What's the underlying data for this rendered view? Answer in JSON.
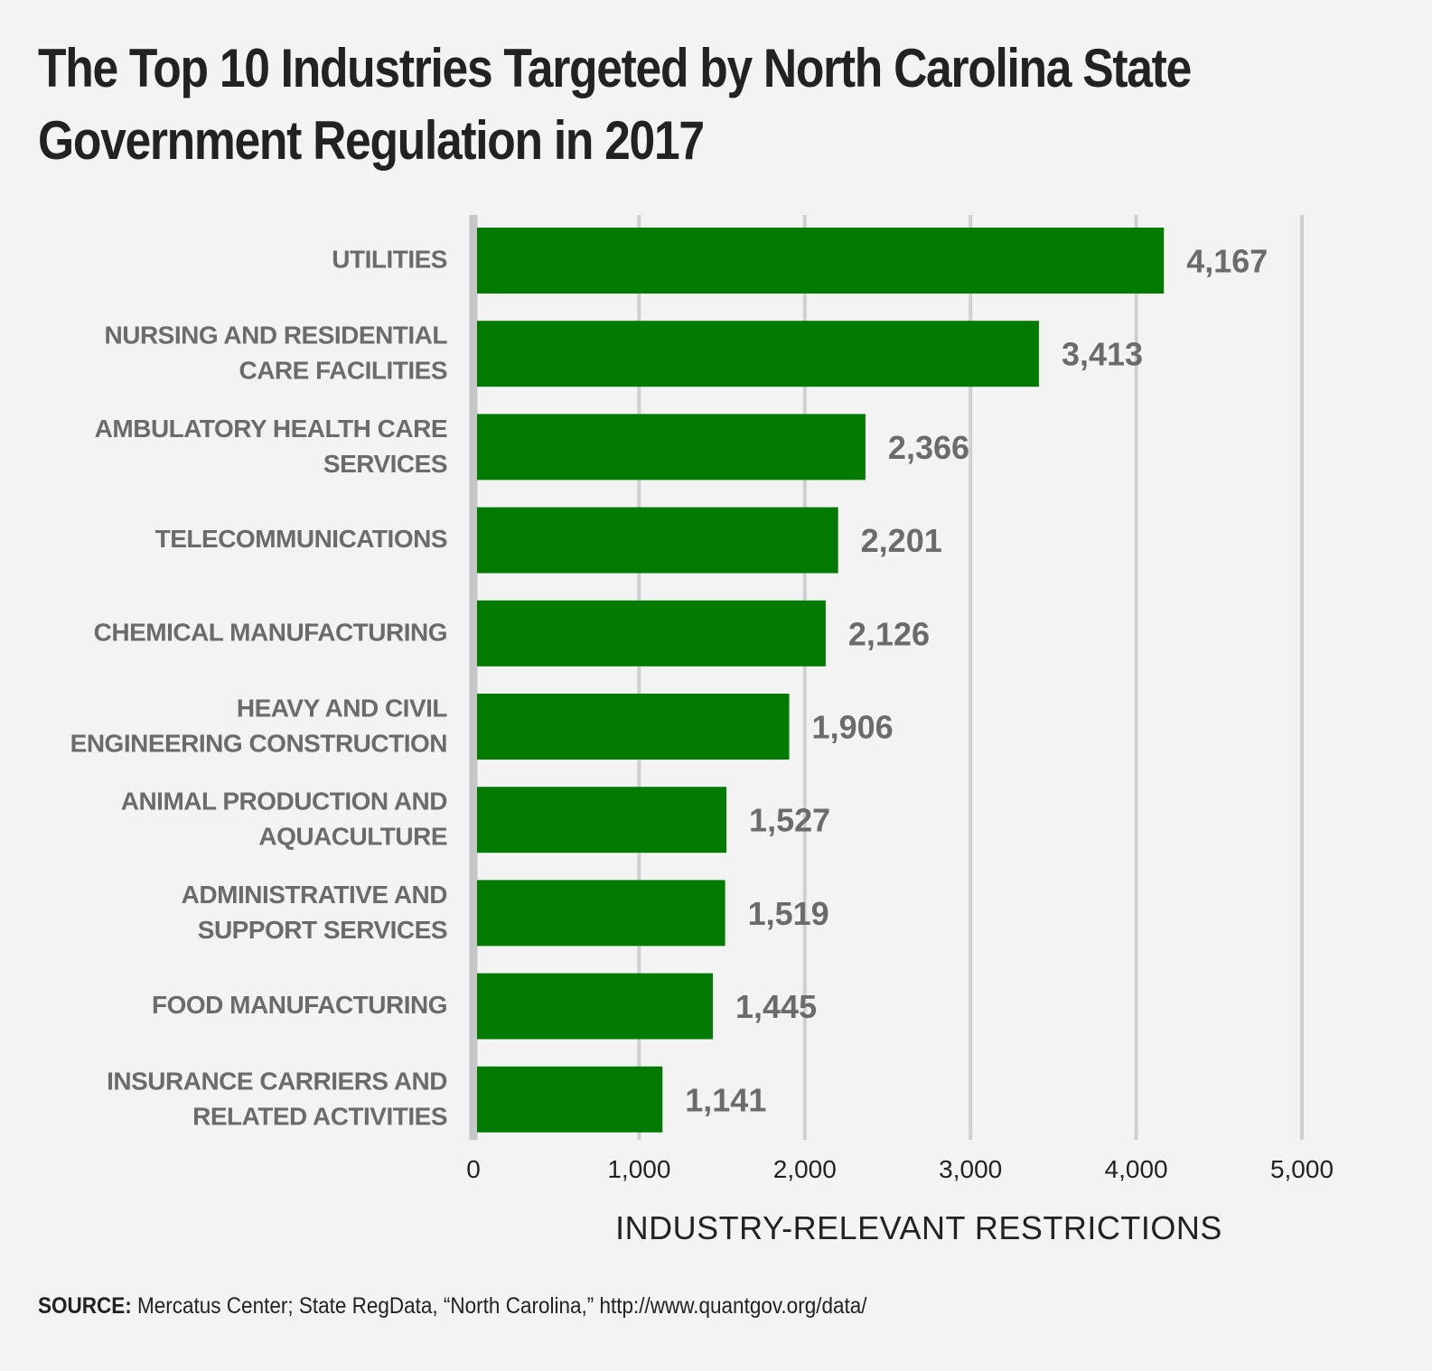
{
  "chart_data": {
    "type": "bar",
    "orientation": "horizontal",
    "title": "The Top 10 Industries Targeted by North Carolina State Government Regulation in 2017",
    "xlabel": "INDUSTRY-RELEVANT RESTRICTIONS",
    "ylabel": "",
    "categories": [
      [
        "UTILITIES"
      ],
      [
        "NURSING AND RESIDENTIAL",
        "CARE FACILITIES"
      ],
      [
        "AMBULATORY HEALTH CARE",
        "SERVICES"
      ],
      [
        "TELECOMMUNICATIONS"
      ],
      [
        "CHEMICAL MANUFACTURING"
      ],
      [
        "HEAVY AND CIVIL",
        "ENGINEERING CONSTRUCTION"
      ],
      [
        "ANIMAL PRODUCTION AND",
        "AQUACULTURE"
      ],
      [
        "ADMINISTRATIVE AND",
        "SUPPORT SERVICES"
      ],
      [
        "FOOD MANUFACTURING"
      ],
      [
        "INSURANCE CARRIERS AND",
        "RELATED ACTIVITIES"
      ]
    ],
    "values": [
      4167,
      3413,
      2366,
      2201,
      2126,
      1906,
      1527,
      1519,
      1445,
      1141
    ],
    "value_labels": [
      "4,167",
      "3,413",
      "2,366",
      "2,201",
      "2,126",
      "1,906",
      "1,527",
      "1,519",
      "1,445",
      "1,141"
    ],
    "xlim": [
      0,
      5000
    ],
    "ticks": [
      0,
      1000,
      2000,
      3000,
      4000,
      5000
    ],
    "tick_labels": [
      "0",
      "1,000",
      "2,000",
      "3,000",
      "4,000",
      "5,000"
    ],
    "grid": "vertical",
    "legend": "none",
    "bar_color": "#037b03",
    "grid_color": "#cfcfd2",
    "label_color": "#6b6b6e",
    "text_color": "#222222"
  },
  "source": {
    "label": "SOURCE:",
    "text": "Mercatus Center; State RegData, “North Carolina,” http://www.quantgov.org/data/"
  }
}
